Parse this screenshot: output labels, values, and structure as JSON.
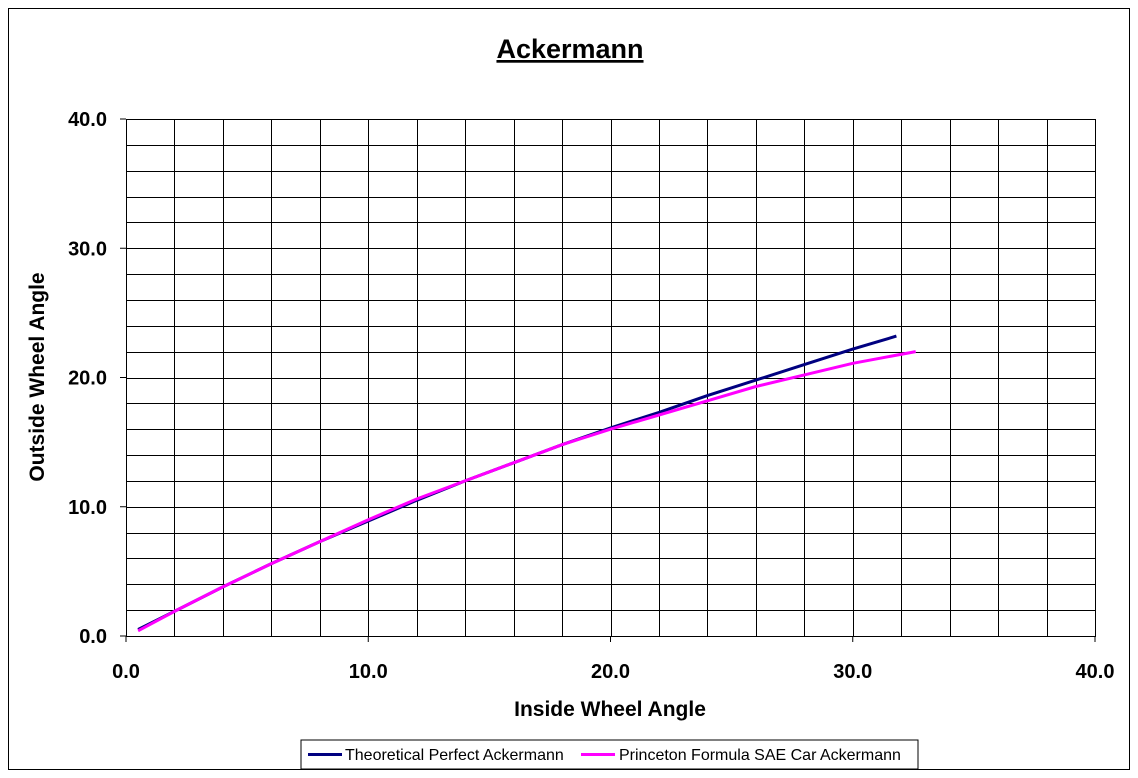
{
  "chart_data": {
    "type": "line",
    "title": "Ackermann",
    "xlabel": "Inside Wheel Angle",
    "ylabel": "Outside Wheel Angle",
    "xlim": [
      0,
      40
    ],
    "ylim": [
      0,
      40
    ],
    "x_ticks": [
      "0.0",
      "10.0",
      "20.0",
      "30.0",
      "40.0"
    ],
    "y_ticks": [
      "0.0",
      "10.0",
      "20.0",
      "30.0",
      "40.0"
    ],
    "grid": true,
    "legend_position": "bottom",
    "series": [
      {
        "name": "Theoretical Perfect Ackermann",
        "color": "#000080",
        "x": [
          0.5,
          2,
          4,
          6,
          8,
          10,
          12,
          14,
          16,
          18,
          20,
          22,
          24,
          26,
          28,
          30,
          31.8
        ],
        "y": [
          0.5,
          1.9,
          3.8,
          5.6,
          7.3,
          8.9,
          10.5,
          12.0,
          13.4,
          14.8,
          16.1,
          17.3,
          18.6,
          19.8,
          21.0,
          22.2,
          23.2
        ]
      },
      {
        "name": "Princeton Formula SAE Car Ackermann",
        "color": "#ff00ff",
        "x": [
          0.5,
          2,
          4,
          6,
          8,
          10,
          12,
          14,
          16,
          18,
          20,
          22,
          24,
          26,
          28,
          30,
          32.6
        ],
        "y": [
          0.4,
          1.9,
          3.8,
          5.6,
          7.3,
          9.0,
          10.6,
          12.0,
          13.4,
          14.8,
          16.0,
          17.1,
          18.2,
          19.3,
          20.2,
          21.1,
          22.0
        ]
      }
    ]
  }
}
